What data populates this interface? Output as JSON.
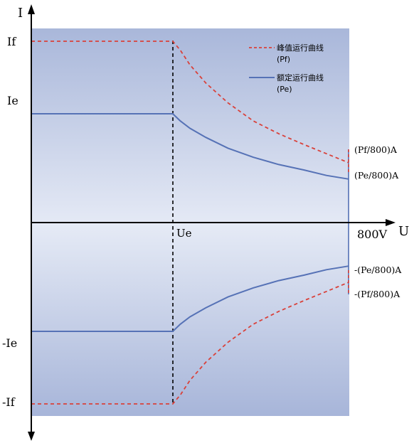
{
  "chart_data": {
    "type": "line",
    "xlabel": "U",
    "ylabel": "I",
    "x_tick_labels": [
      "Ue",
      "800V"
    ],
    "y_tick_labels": [
      "If",
      "Ie",
      "-Ie",
      "-If"
    ],
    "grid": false,
    "legend_position": "top-right",
    "x_domain": [
      0,
      1
    ],
    "y_domain": [
      -1,
      1
    ],
    "series": [
      {
        "name": "峰值运行曲线",
        "sub": "(Pf)",
        "end_label": "(Pf/800)A",
        "style": "dashed",
        "color": "#d9413a",
        "x": [
          0,
          0.446,
          0.47,
          0.5,
          0.55,
          0.62,
          0.7,
          0.78,
          0.86,
          0.93,
          1.0
        ],
        "y": [
          1.0,
          1.0,
          0.95,
          0.87,
          0.77,
          0.66,
          0.56,
          0.49,
          0.43,
          0.38,
          0.33
        ]
      },
      {
        "name": "额定运行曲线",
        "sub": "(Pe)",
        "end_label": "(Pe/800)A",
        "style": "solid",
        "color": "#5672b6",
        "x": [
          0,
          0.446,
          0.47,
          0.5,
          0.55,
          0.62,
          0.7,
          0.78,
          0.86,
          0.93,
          1.0
        ],
        "y": [
          0.6,
          0.6,
          0.56,
          0.52,
          0.47,
          0.41,
          0.36,
          0.32,
          0.29,
          0.26,
          0.24
        ]
      },
      {
        "name": "",
        "end_label": "-(Pe/800)A",
        "style": "solid",
        "color": "#5672b6",
        "x": [
          0,
          0.446,
          0.47,
          0.5,
          0.55,
          0.62,
          0.7,
          0.78,
          0.86,
          0.93,
          1.0
        ],
        "y": [
          -0.6,
          -0.6,
          -0.56,
          -0.52,
          -0.47,
          -0.41,
          -0.36,
          -0.32,
          -0.29,
          -0.26,
          -0.24
        ]
      },
      {
        "name": "",
        "end_label": "-(Pf/800)A",
        "style": "dashed",
        "color": "#d9413a",
        "x": [
          0,
          0.446,
          0.47,
          0.5,
          0.55,
          0.62,
          0.7,
          0.78,
          0.86,
          0.93,
          1.0
        ],
        "y": [
          -1.0,
          -1.0,
          -0.95,
          -0.87,
          -0.77,
          -0.66,
          -0.56,
          -0.49,
          -0.43,
          -0.38,
          -0.33
        ]
      }
    ]
  }
}
